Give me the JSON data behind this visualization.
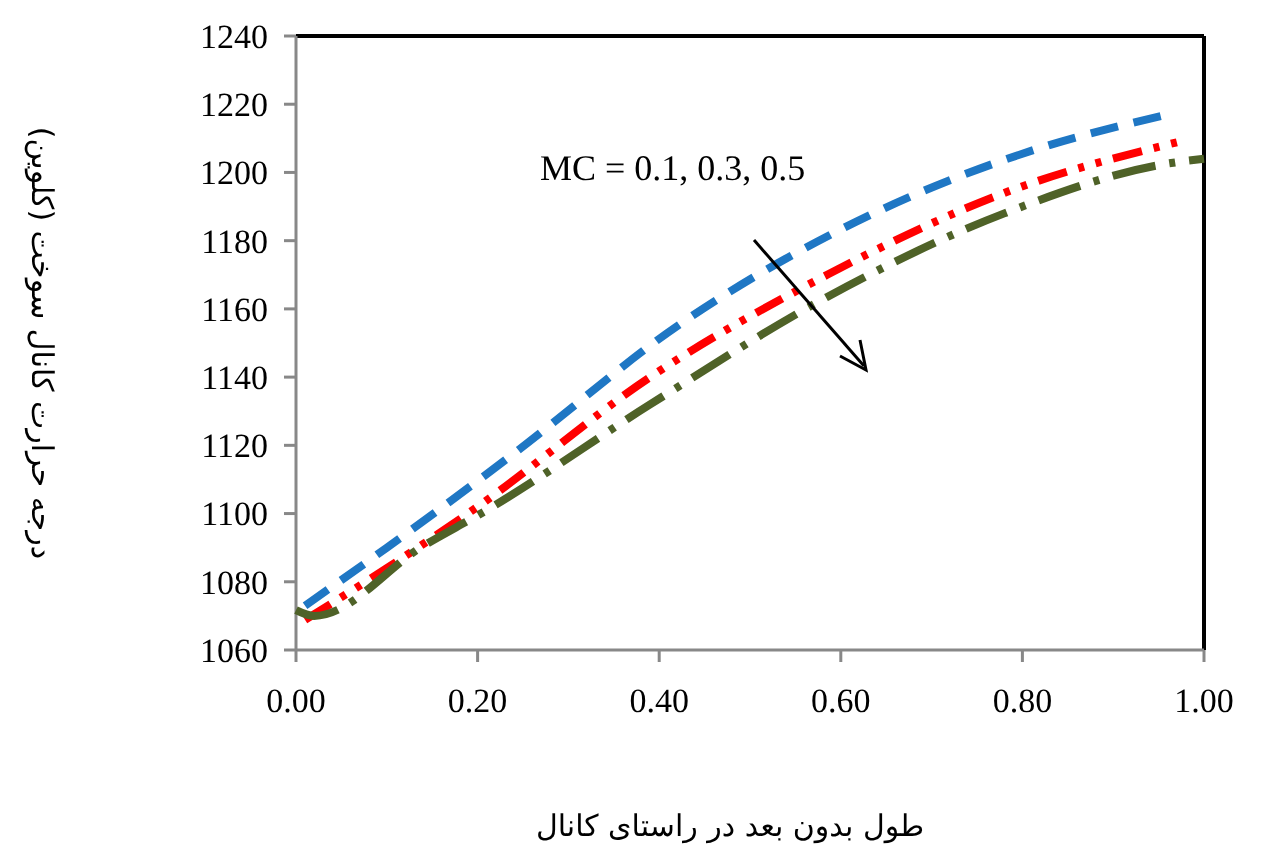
{
  "chart_data": {
    "type": "line",
    "xlabel": "طول بدون بعد در راستای کانال",
    "ylabel": "درجه حرارت کانال سوخت (کلوین)",
    "annotations": [
      "MC = 0.1, 0.3, 0.5"
    ],
    "xlim": [
      0,
      1
    ],
    "xticks": [
      {
        "value": 0,
        "label": "0.00"
      },
      {
        "value": 0.2,
        "label": "0.20"
      },
      {
        "value": 0.4,
        "label": "0.40"
      },
      {
        "value": 0.6,
        "label": "0.60"
      },
      {
        "value": 0.8,
        "label": "0.80"
      },
      {
        "value": 1,
        "label": "1.00"
      }
    ],
    "ylim": [
      1060,
      1240
    ],
    "yticks": [
      1060,
      1080,
      1100,
      1120,
      1140,
      1160,
      1180,
      1200,
      1220,
      1240
    ],
    "grid": false,
    "marker": "none",
    "series": [
      {
        "color": "#1f77c4",
        "line_style": "dashed",
        "x": [
          0.01,
          0.1,
          0.24,
          0.42,
          0.636,
          0.8,
          0.96
        ],
        "values": [
          1073,
          1090,
          1117.6,
          1155,
          1188,
          1205.5,
          1217
        ]
      },
      {
        "color": "#ff0000",
        "line_style": "dotted",
        "x": [
          0.01,
          0.1,
          0.2,
          0.39,
          0.585,
          0.78,
          0.98
        ],
        "values": [
          1068.8,
          1084,
          1102,
          1140,
          1170,
          1194,
          1209.5
        ]
      },
      {
        "color": "#4f6228",
        "line_style": "dashed",
        "x": [
          0,
          0.02,
          0.14,
          0.21,
          0.39,
          0.585,
          0.78,
          0.96,
          1
        ],
        "values": [
          1071.7,
          1070,
          1090.5,
          1101,
          1132,
          1163.5,
          1188,
          1202.6,
          1204
        ]
      }
    ]
  }
}
